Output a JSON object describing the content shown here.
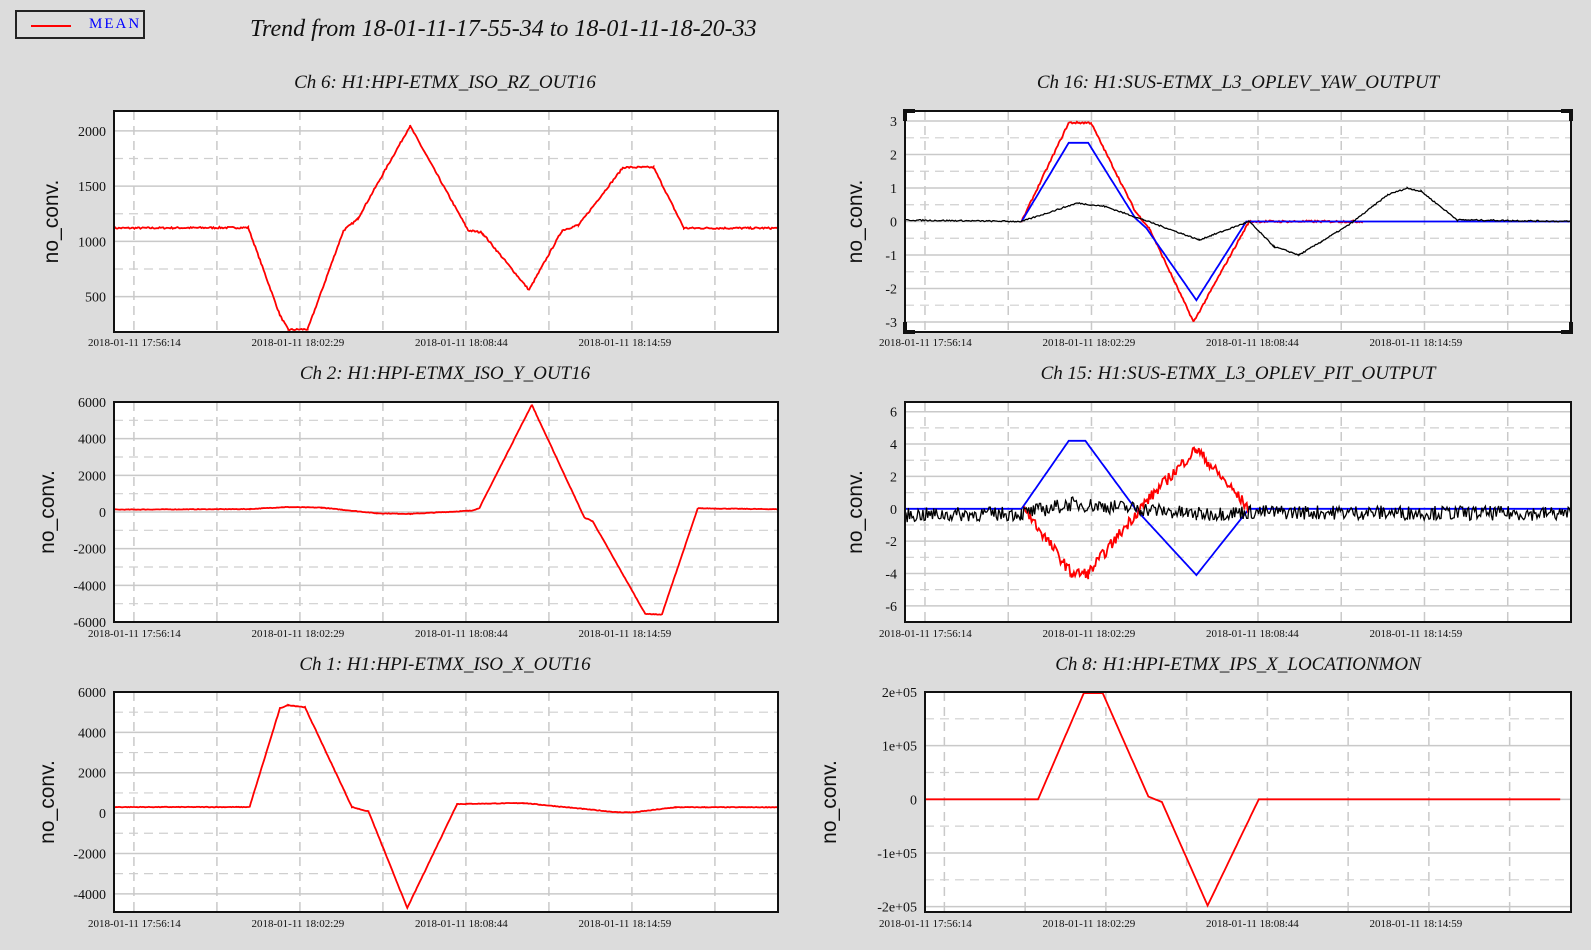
{
  "legend": {
    "label": "MEAN",
    "color": "#ff0000",
    "label_color": "#0000ff"
  },
  "title": "Trend from 18-01-11-17-55-34 to 18-01-11-18-20-33",
  "colors": {
    "red": "#ff0000",
    "blue": "#0000ff",
    "black": "#000000",
    "grid": "#c8c8c8",
    "background": "#dcdcdc"
  },
  "chart_data": [
    {
      "type": "line",
      "title": "Ch 6: H1:HPI-ETMX_ISO_RZ_OUT16",
      "ylabel": "no_conv.",
      "xlim": [
        0,
        24
      ],
      "ylim": [
        180,
        2180
      ],
      "yticks": [
        500,
        1000,
        1500,
        2000
      ],
      "ytick_labels": [
        "500",
        "1000",
        "1500",
        "2000"
      ],
      "xticks": [
        0,
        6.25,
        12.5,
        18.75
      ],
      "xtick_labels": [
        "2018-01-11 17:56:14",
        "2018-01-11 18:02:29",
        "2018-01-11 18:08:44",
        "2018-01-11 18:14:59"
      ],
      "series": [
        {
          "color": "#ff0000",
          "noise": 8,
          "points": [
            [
              0,
              1120
            ],
            [
              4.85,
              1125
            ],
            [
              6.0,
              330
            ],
            [
              6.3,
              200
            ],
            [
              7.0,
              205
            ],
            [
              8.3,
              1100
            ],
            [
              8.8,
              1200
            ],
            [
              10.7,
              2045
            ],
            [
              12.8,
              1100
            ],
            [
              13.3,
              1080
            ],
            [
              15.0,
              560
            ],
            [
              16.2,
              1100
            ],
            [
              16.8,
              1150
            ],
            [
              18.4,
              1670
            ],
            [
              19.5,
              1670
            ],
            [
              20.6,
              1120
            ],
            [
              24,
              1120
            ]
          ]
        }
      ]
    },
    {
      "type": "line",
      "title": "Ch 2: H1:HPI-ETMX_ISO_Y_OUT16",
      "ylabel": "no_conv.",
      "xlim": [
        0,
        24
      ],
      "ylim": [
        -6000,
        6000
      ],
      "yticks": [
        -6000,
        -4000,
        -2000,
        0,
        2000,
        4000,
        6000
      ],
      "ytick_labels": [
        "-6000",
        "-4000",
        "-2000",
        "0",
        "2000",
        "4000",
        "6000"
      ],
      "xticks": [
        0,
        6.25,
        12.5,
        18.75
      ],
      "xtick_labels": [
        "2018-01-11 17:56:14",
        "2018-01-11 18:02:29",
        "2018-01-11 18:08:44",
        "2018-01-11 18:14:59"
      ],
      "series": [
        {
          "color": "#ff0000",
          "noise": 15,
          "points": [
            [
              0,
              130
            ],
            [
              4.9,
              160
            ],
            [
              6.2,
              270
            ],
            [
              7.5,
              240
            ],
            [
              9.5,
              -70
            ],
            [
              10.7,
              -100
            ],
            [
              12.9,
              70
            ],
            [
              13.2,
              200
            ],
            [
              15.1,
              5850
            ],
            [
              17.0,
              -300
            ],
            [
              17.3,
              -500
            ],
            [
              19.2,
              -5550
            ],
            [
              19.8,
              -5600
            ],
            [
              21.1,
              200
            ],
            [
              24,
              150
            ]
          ]
        }
      ]
    },
    {
      "type": "line",
      "title": "Ch 1: H1:HPI-ETMX_ISO_X_OUT16",
      "ylabel": "no_conv.",
      "xlim": [
        0,
        24
      ],
      "ylim": [
        -4900,
        6000
      ],
      "yticks": [
        -4000,
        -2000,
        0,
        2000,
        4000,
        6000
      ],
      "ytick_labels": [
        "-4000",
        "-2000",
        "0",
        "2000",
        "4000",
        "6000"
      ],
      "xticks": [
        0,
        6.25,
        12.5,
        18.75
      ],
      "xtick_labels": [
        "2018-01-11 17:56:14",
        "2018-01-11 18:02:29",
        "2018-01-11 18:08:44",
        "2018-01-11 18:14:59"
      ],
      "series": [
        {
          "color": "#ff0000",
          "noise": 15,
          "points": [
            [
              0,
              300
            ],
            [
              4.9,
              300
            ],
            [
              6.0,
              5200
            ],
            [
              6.3,
              5350
            ],
            [
              6.9,
              5250
            ],
            [
              8.6,
              300
            ],
            [
              9.2,
              80
            ],
            [
              10.6,
              -4700
            ],
            [
              12.4,
              450
            ],
            [
              14.8,
              500
            ],
            [
              18.2,
              40
            ],
            [
              18.8,
              40
            ],
            [
              20.3,
              290
            ],
            [
              24,
              290
            ]
          ]
        }
      ]
    },
    {
      "type": "line",
      "title": "Ch 16: H1:SUS-ETMX_L3_OPLEV_YAW_OUTPUT",
      "ylabel": "no_conv.",
      "xlim": [
        0,
        24
      ],
      "ylim": [
        -3.3,
        3.3
      ],
      "yticks": [
        -3,
        -2,
        -1,
        0,
        1,
        2,
        3
      ],
      "ytick_labels": [
        "-3",
        "-2",
        "-1",
        "0",
        "1",
        "2",
        "3"
      ],
      "xticks": [
        0,
        6.25,
        12.5,
        18.75
      ],
      "xtick_labels": [
        "2018-01-11 17:56:14",
        "2018-01-11 18:02:29",
        "2018-01-11 18:08:44",
        "2018-01-11 18:14:59"
      ],
      "series": [
        {
          "color": "#ff0000",
          "noise": 0.03,
          "points": [
            [
              4.2,
              0
            ],
            [
              5.9,
              2.95
            ],
            [
              6.7,
              2.95
            ],
            [
              8.3,
              0.3
            ],
            [
              8.8,
              -0.2
            ],
            [
              10.4,
              -3.0
            ],
            [
              12.4,
              0
            ],
            [
              16.5,
              0
            ]
          ]
        },
        {
          "color": "#0000ff",
          "noise": 0,
          "points": [
            [
              4.2,
              0
            ],
            [
              5.9,
              2.35
            ],
            [
              6.6,
              2.35
            ],
            [
              8.3,
              0.1
            ],
            [
              8.7,
              -0.2
            ],
            [
              10.5,
              -2.35
            ],
            [
              12.3,
              0
            ],
            [
              24,
              0
            ]
          ]
        },
        {
          "color": "#000000",
          "noise": 0.02,
          "points": [
            [
              -0.7,
              0.05
            ],
            [
              4.2,
              0
            ],
            [
              6.2,
              0.55
            ],
            [
              7.2,
              0.45
            ],
            [
              8.6,
              0.05
            ],
            [
              10.6,
              -0.55
            ],
            [
              12.4,
              0.0
            ],
            [
              13.3,
              -0.75
            ],
            [
              14.2,
              -1.0
            ],
            [
              15.0,
              -0.6
            ],
            [
              16.0,
              -0.1
            ],
            [
              17.4,
              0.8
            ],
            [
              18.1,
              1.0
            ],
            [
              18.6,
              0.9
            ],
            [
              19.9,
              0.05
            ],
            [
              24.2,
              0.0
            ]
          ]
        }
      ]
    },
    {
      "type": "line",
      "title": "Ch 15: H1:SUS-ETMX_L3_OPLEV_PIT_OUTPUT",
      "ylabel": "no_conv.",
      "xlim": [
        0,
        24
      ],
      "ylim": [
        -7,
        6.6
      ],
      "yticks": [
        -6,
        -4,
        -2,
        0,
        2,
        4,
        6
      ],
      "ytick_labels": [
        "-6",
        "-4",
        "-2",
        "0",
        "2",
        "4",
        "6"
      ],
      "xticks": [
        0,
        6.25,
        12.5,
        18.75
      ],
      "xtick_labels": [
        "2018-01-11 17:56:14",
        "2018-01-11 18:02:29",
        "2018-01-11 18:08:44",
        "2018-01-11 18:14:59"
      ],
      "series": [
        {
          "color": "#0000ff",
          "noise": 0,
          "points": [
            [
              -0.7,
              0
            ],
            [
              4.2,
              0
            ],
            [
              5.9,
              4.2
            ],
            [
              6.5,
              4.2
            ],
            [
              8.3,
              0
            ],
            [
              10.5,
              -4.1
            ],
            [
              12.4,
              0
            ],
            [
              24.2,
              0
            ]
          ]
        },
        {
          "color": "#ff0000",
          "noise": 0.35,
          "points": [
            [
              4.3,
              0
            ],
            [
              6.0,
              -4.0
            ],
            [
              6.6,
              -4.0
            ],
            [
              8.5,
              0.1
            ],
            [
              10.5,
              3.7
            ],
            [
              12.4,
              0
            ]
          ]
        },
        {
          "color": "#000000",
          "noise": 0.45,
          "points": [
            [
              -0.7,
              -0.4
            ],
            [
              4.2,
              -0.3
            ],
            [
              6.0,
              0.3
            ],
            [
              8.5,
              0
            ],
            [
              10.5,
              -0.35
            ],
            [
              12.4,
              -0.2
            ],
            [
              24.2,
              -0.3
            ]
          ]
        }
      ]
    },
    {
      "type": "line",
      "title": "Ch 8: H1:HPI-ETMX_IPS_X_LOCATIONMON",
      "ylabel": "no_conv.",
      "xlim": [
        0,
        24
      ],
      "ylim": [
        -210000,
        200000
      ],
      "yticks": [
        -200000,
        -100000,
        0,
        100000,
        200000
      ],
      "ytick_labels": [
        "-2e+05",
        "-1e+05",
        "0",
        "1e+05",
        "2e+05"
      ],
      "xticks": [
        0,
        6.25,
        12.5,
        18.75
      ],
      "xtick_labels": [
        "2018-01-11 17:56:14",
        "2018-01-11 18:02:29",
        "2018-01-11 18:08:44",
        "2018-01-11 18:14:59"
      ],
      "series": [
        {
          "color": "#ff0000",
          "noise": 0,
          "points": [
            [
              0,
              0
            ],
            [
              4.2,
              0
            ],
            [
              5.9,
              198000
            ],
            [
              6.6,
              198000
            ],
            [
              8.3,
              5000
            ],
            [
              8.8,
              -5000
            ],
            [
              10.5,
              -198000
            ],
            [
              12.4,
              0
            ],
            [
              23.6,
              0
            ]
          ]
        }
      ]
    }
  ]
}
